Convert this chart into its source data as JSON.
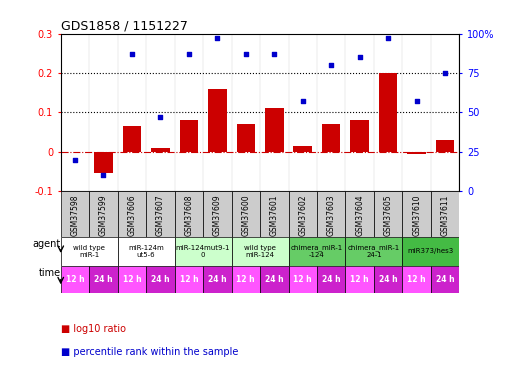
{
  "title": "GDS1858 / 1151227",
  "samples": [
    "GSM37598",
    "GSM37599",
    "GSM37606",
    "GSM37607",
    "GSM37608",
    "GSM37609",
    "GSM37600",
    "GSM37601",
    "GSM37602",
    "GSM37603",
    "GSM37604",
    "GSM37605",
    "GSM37610",
    "GSM37611"
  ],
  "log10_ratio": [
    0.0,
    -0.055,
    0.065,
    0.01,
    0.08,
    0.16,
    0.07,
    0.11,
    0.015,
    0.07,
    0.08,
    0.2,
    -0.005,
    0.03
  ],
  "percentile_rank": [
    20,
    10,
    87,
    47,
    87,
    97,
    87,
    87,
    57,
    80,
    85,
    97,
    57,
    75
  ],
  "ylim_left": [
    -0.1,
    0.3
  ],
  "ylim_right": [
    0,
    100
  ],
  "yticks_left": [
    -0.1,
    0.0,
    0.1,
    0.2,
    0.3
  ],
  "yticks_right": [
    0,
    25,
    50,
    75,
    100
  ],
  "hlines": [
    0.1,
    0.2
  ],
  "bar_color": "#cc0000",
  "scatter_color": "#0000cc",
  "zero_line_color": "#cc0000",
  "agents": [
    {
      "label": "wild type\nmiR-1",
      "start": 0,
      "end": 2,
      "color": "#ffffff"
    },
    {
      "label": "miR-124m\nut5-6",
      "start": 2,
      "end": 4,
      "color": "#ffffff"
    },
    {
      "label": "miR-124mut9-1\n0",
      "start": 4,
      "end": 6,
      "color": "#ccffcc"
    },
    {
      "label": "wild type\nmiR-124",
      "start": 6,
      "end": 8,
      "color": "#ccffcc"
    },
    {
      "label": "chimera_miR-1\n-124",
      "start": 8,
      "end": 10,
      "color": "#66cc66"
    },
    {
      "label": "chimera_miR-1\n24-1",
      "start": 10,
      "end": 12,
      "color": "#66cc66"
    },
    {
      "label": "miR373/hes3",
      "start": 12,
      "end": 14,
      "color": "#44bb44"
    }
  ],
  "time_labels": [
    "12 h",
    "24 h",
    "12 h",
    "24 h",
    "12 h",
    "24 h",
    "12 h",
    "24 h",
    "12 h",
    "24 h",
    "12 h",
    "24 h",
    "12 h",
    "24 h"
  ],
  "time_color_12": "#ff55ff",
  "time_color_24": "#cc22cc",
  "sample_bg": "#cccccc",
  "bg_color": "#ffffff",
  "legend_red": "log10 ratio",
  "legend_blue": "percentile rank within the sample"
}
